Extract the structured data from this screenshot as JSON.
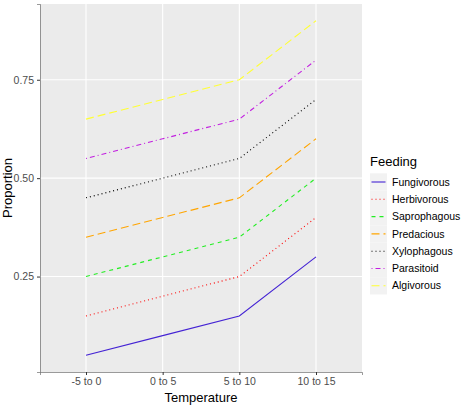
{
  "chart_data": {
    "type": "line",
    "x_label": "Temperature",
    "y_label": "Proportion",
    "legend_title": "Feeding",
    "categories": [
      "-5 to 0",
      "0 to 5",
      "5 to 10",
      "10 to 15"
    ],
    "ylim": [
      0.0075,
      0.9425
    ],
    "yticks": [
      0.25,
      {
        "value": 0.5,
        "label": "0.50"
      },
      0.75
    ],
    "grid": true,
    "legend": "right",
    "series": [
      {
        "name": "Fungivorous",
        "color": "#4423d4",
        "line_style": "solid",
        "values": [
          0.05,
          0.1,
          0.15,
          0.3
        ]
      },
      {
        "name": "Herbivorous",
        "color": "#ff0000",
        "line_style": "dotted",
        "values": [
          0.15,
          0.2,
          0.25,
          0.4
        ]
      },
      {
        "name": "Saprophagous",
        "color": "#22ee22",
        "line_style": "dashed",
        "values": [
          0.25,
          0.3,
          0.35,
          0.5
        ]
      },
      {
        "name": "Predacious",
        "color": "#ffa500",
        "line_style": "longdash",
        "values": [
          0.35,
          0.4,
          0.45,
          0.6
        ]
      },
      {
        "name": "Xylophagous",
        "color": "#000000",
        "line_style": "dotted",
        "values": [
          0.45,
          0.5,
          0.55,
          0.7
        ]
      },
      {
        "name": "Parasitoid",
        "color": "#c21fe0",
        "line_style": "dotdash",
        "values": [
          0.55,
          0.6,
          0.65,
          0.8
        ]
      },
      {
        "name": "Algivorous",
        "color": "#ffff33",
        "line_style": "longdash",
        "values": [
          0.65,
          0.7,
          0.75,
          0.9
        ]
      }
    ]
  }
}
